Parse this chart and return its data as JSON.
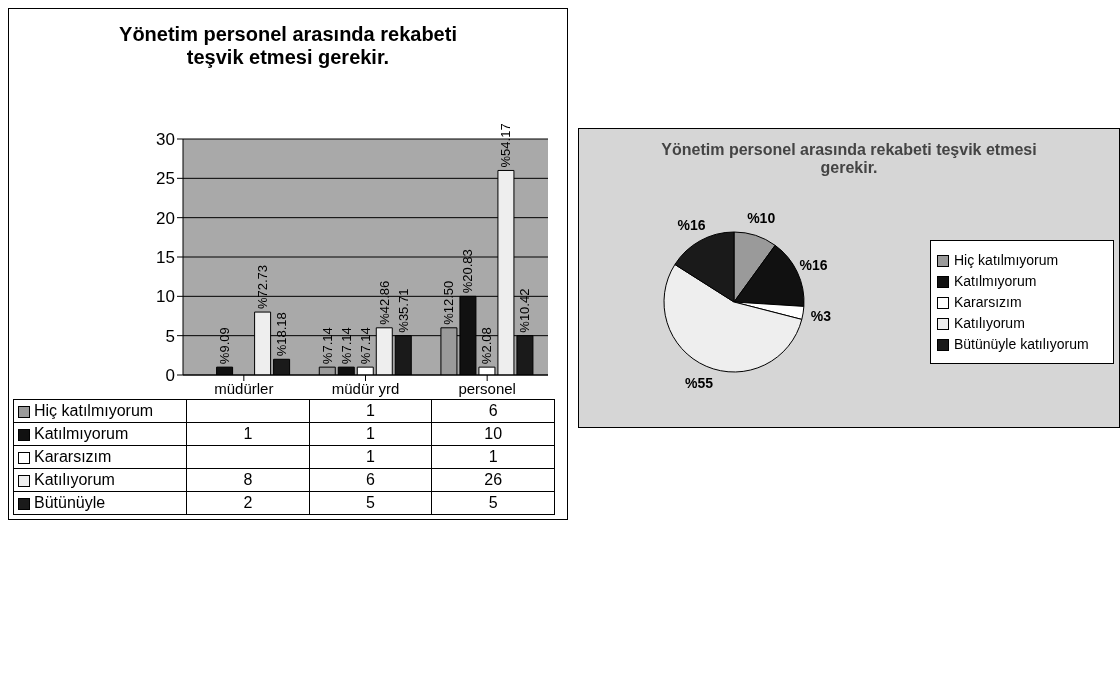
{
  "chart_data": [
    {
      "type": "bar",
      "title": "Yönetim personel arasında rekabeti teşvik etmesi gerekir.",
      "categories": [
        "müdürler",
        "müdür yrd",
        "personel"
      ],
      "series": [
        {
          "name": "Hiç katılmıyorum",
          "color": "#9a9a9a",
          "values": [
            null,
            1,
            6
          ]
        },
        {
          "name": "Katılmıyorum",
          "color": "#111111",
          "values": [
            1,
            1,
            10
          ]
        },
        {
          "name": "Kararsızım",
          "color": "#ffffff",
          "values": [
            null,
            1,
            1
          ]
        },
        {
          "name": "Katılıyorum",
          "color": "#eeeeee",
          "values": [
            8,
            6,
            26
          ]
        },
        {
          "name": "Bütünüyle",
          "color": "#1a1a1a",
          "values": [
            2,
            5,
            5
          ]
        }
      ],
      "annotations": [
        "%9.09",
        "%72.73",
        "%18.18",
        "%7.14",
        "%7.14",
        "%7.14",
        "%42.86",
        "%35.71",
        "%12.50",
        "%20.83",
        "%2.08",
        "%54.17",
        "%10.42"
      ],
      "ylim": [
        0,
        30
      ],
      "yticks": [
        0,
        5,
        10,
        15,
        20,
        25,
        30
      ],
      "grid": "y",
      "legend": "bottom",
      "data_labels": true
    },
    {
      "type": "pie",
      "title": "Yönetim personel arasında rekabeti teşvik etmesi gerekir.",
      "categories": [
        "Hiç katılmıyorum",
        "Katılmıyorum",
        "Kararsızım",
        "Katılıyorum",
        "Bütünüyle katılıyorum"
      ],
      "values": [
        10,
        16,
        3,
        55,
        16
      ],
      "colors": [
        "#9a9a9a",
        "#111111",
        "#ffffff",
        "#eeeeee",
        "#1a1a1a"
      ],
      "value_labels": [
        "%10",
        "%16",
        "%3",
        "%55",
        "%16"
      ],
      "legend": "right"
    }
  ]
}
